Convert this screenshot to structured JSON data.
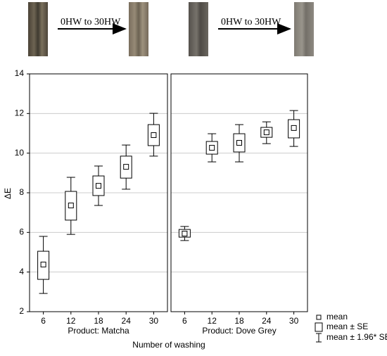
{
  "header": {
    "arrow_labels": [
      "0HW to 30HW",
      "0HW to 30HW"
    ]
  },
  "chart_data": {
    "type": "box",
    "y_label": "ΔE",
    "x_label": "Number of washing",
    "categories": [
      "6",
      "12",
      "18",
      "24",
      "30"
    ],
    "ylim": [
      2,
      14
    ],
    "yticks": [
      2,
      4,
      6,
      8,
      10,
      12,
      14
    ],
    "grid": true,
    "legend": [
      "mean",
      "mean ± SE",
      "mean ± 1.96* SE"
    ],
    "panels": [
      {
        "title": "Product: Matcha",
        "mean": [
          4.38,
          7.36,
          8.35,
          9.31,
          10.91
        ],
        "se_low": [
          3.63,
          6.62,
          7.86,
          8.74,
          10.38
        ],
        "se_high": [
          5.05,
          8.07,
          8.85,
          9.85,
          11.44
        ],
        "ci_low": [
          2.92,
          5.9,
          7.36,
          8.18,
          9.85
        ],
        "ci_high": [
          5.8,
          8.78,
          9.35,
          10.41,
          12.01
        ]
      },
      {
        "title": "Product: Dove Grey",
        "mean": [
          5.94,
          10.27,
          10.52,
          11.05,
          11.27
        ],
        "se_low": [
          5.76,
          9.95,
          10.06,
          10.8,
          10.77
        ],
        "se_high": [
          6.15,
          10.59,
          10.98,
          11.3,
          11.69
        ],
        "ci_low": [
          5.59,
          9.56,
          9.56,
          10.48,
          10.34
        ],
        "ci_high": [
          6.3,
          10.98,
          11.44,
          11.58,
          12.15
        ]
      }
    ]
  }
}
